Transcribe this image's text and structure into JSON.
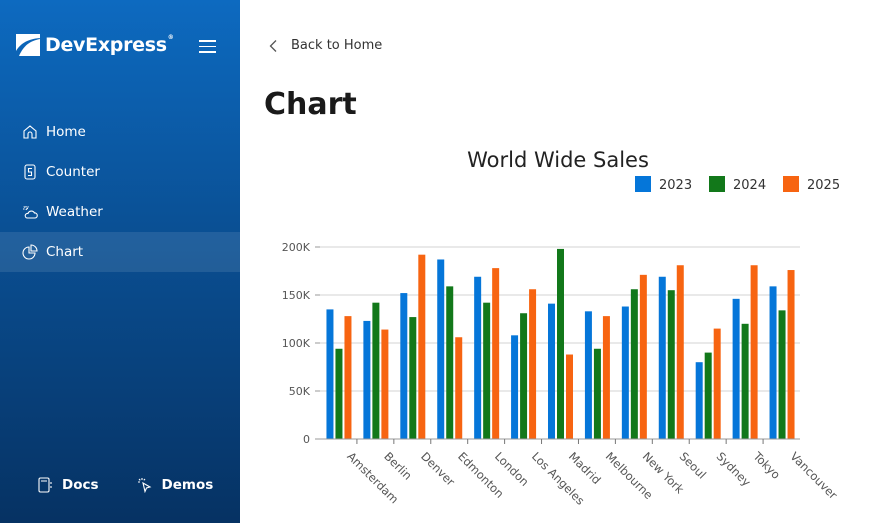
{
  "sidebar": {
    "brand": "DevExpress",
    "brand_mark": "®",
    "items": [
      {
        "label": "Home",
        "icon": "home-icon"
      },
      {
        "label": "Counter",
        "icon": "counter-icon"
      },
      {
        "label": "Weather",
        "icon": "weather-icon"
      },
      {
        "label": "Chart",
        "icon": "chart-icon",
        "active": true
      }
    ],
    "footer": [
      {
        "label": "Docs",
        "icon": "docs-icon"
      },
      {
        "label": "Demos",
        "icon": "demos-icon"
      }
    ]
  },
  "main": {
    "back_label": "Back to Home",
    "page_title": "Chart"
  },
  "colors": {
    "2023": "#0576d9",
    "2024": "#12781a",
    "2025": "#f76411"
  },
  "chart_data": {
    "type": "bar",
    "title": "World Wide Sales",
    "xlabel": "",
    "ylabel": "",
    "ylim": [
      0,
      200000
    ],
    "yticks": [
      "0",
      "50K",
      "100K",
      "150K",
      "200K"
    ],
    "grid": true,
    "legend_position": "top-right",
    "categories": [
      "Amsterdam",
      "Berlin",
      "Denver",
      "Edmonton",
      "London",
      "Los Angeles",
      "Madrid",
      "Melbourne",
      "New York",
      "Seoul",
      "Sydney",
      "Tokyo",
      "Vancouver"
    ],
    "series": [
      {
        "name": "2023",
        "color": "#0576d9",
        "values": [
          135000,
          123000,
          152000,
          187000,
          169000,
          108000,
          141000,
          133000,
          138000,
          169000,
          80000,
          146000,
          159000
        ]
      },
      {
        "name": "2024",
        "color": "#12781a",
        "values": [
          94000,
          142000,
          127000,
          159000,
          142000,
          131000,
          198000,
          94000,
          156000,
          155000,
          90000,
          120000,
          134000
        ]
      },
      {
        "name": "2025",
        "color": "#f76411",
        "values": [
          128000,
          114000,
          192000,
          106000,
          178000,
          156000,
          88000,
          128000,
          171000,
          181000,
          115000,
          181000,
          176000
        ]
      }
    ]
  }
}
